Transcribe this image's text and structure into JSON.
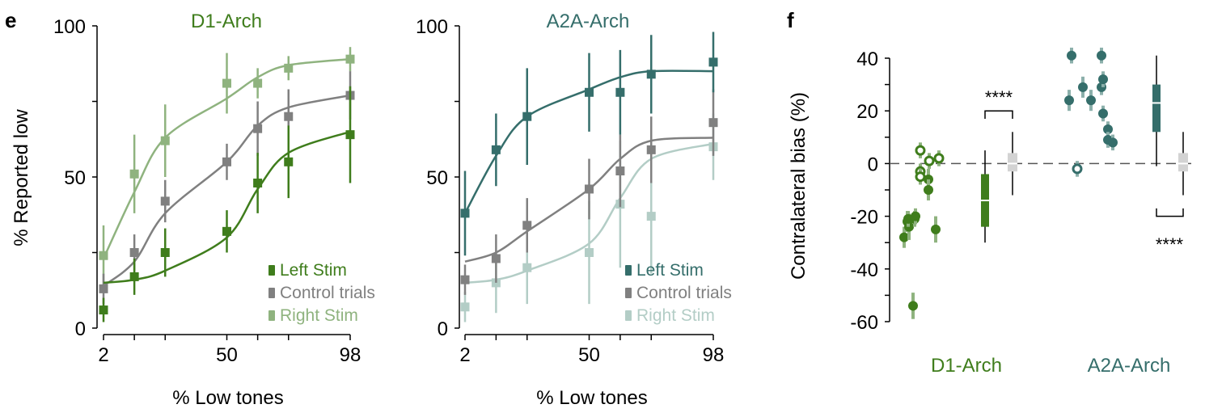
{
  "panel_labels": {
    "e": "e",
    "f": "f"
  },
  "colors": {
    "d1_left": "#3f7d1c",
    "d1_right": "#8fb37f",
    "control": "#808080",
    "a2a_left": "#356e6b",
    "a2a_right": "#b3cdc6",
    "bias_grey": "#d3d3d3",
    "d1_bias": "#3f7d1c",
    "d1_bias_ci": "#8fb37f",
    "a2a_bias": "#356e6b",
    "a2a_bias_ci": "#8cb0ab"
  },
  "chart_data": [
    {
      "type": "line",
      "title": "D1-Arch",
      "xlabel": "% Low tones",
      "ylabel": "% Reported low",
      "x": [
        2,
        14,
        26,
        50,
        62,
        74,
        98
      ],
      "xticks": [
        2,
        50,
        98
      ],
      "ylim": [
        0,
        100
      ],
      "yticks": [
        0,
        50,
        100
      ],
      "grid": false,
      "legend_position": "bottom-right",
      "series": [
        {
          "name": "Left Stim",
          "color": "#3f7d1c",
          "values": [
            6,
            17,
            25,
            32,
            48,
            55,
            64
          ],
          "err": [
            4,
            6,
            8,
            7,
            10,
            12,
            16
          ],
          "fit": [
            15,
            16,
            19,
            30,
            46,
            58,
            65
          ]
        },
        {
          "name": "Control trials",
          "color": "#808080",
          "values": [
            13,
            25,
            42,
            55,
            66,
            70,
            77
          ],
          "err": [
            5,
            6,
            7,
            6,
            9,
            9,
            8
          ],
          "fit": [
            14,
            22,
            38,
            55,
            67,
            73,
            77
          ]
        },
        {
          "name": "Right Stim",
          "color": "#8fb37f",
          "values": [
            24,
            51,
            62,
            81,
            81,
            86,
            89
          ],
          "err": [
            10,
            13,
            12,
            10,
            5,
            4,
            4
          ],
          "fit": [
            23,
            45,
            63,
            76,
            83,
            87,
            89
          ]
        }
      ]
    },
    {
      "type": "line",
      "title": "A2A-Arch",
      "xlabel": "% Low tones",
      "ylabel": "",
      "x": [
        2,
        14,
        26,
        50,
        62,
        74,
        98
      ],
      "xticks": [
        2,
        50,
        98
      ],
      "ylim": [
        0,
        100
      ],
      "yticks": [
        0,
        50,
        100
      ],
      "grid": false,
      "legend_position": "bottom-right",
      "series": [
        {
          "name": "Left Stim",
          "color": "#356e6b",
          "values": [
            38,
            59,
            70,
            78,
            78,
            84,
            88
          ],
          "err": [
            14,
            12,
            16,
            13,
            14,
            13,
            10
          ],
          "fit": [
            38,
            57,
            70,
            79,
            83,
            85,
            85
          ]
        },
        {
          "name": "Control trials",
          "color": "#808080",
          "values": [
            16,
            23,
            34,
            46,
            52,
            59,
            68
          ],
          "err": [
            5,
            8,
            9,
            10,
            12,
            11,
            11
          ],
          "fit": [
            22,
            25,
            32,
            46,
            56,
            62,
            63
          ]
        },
        {
          "name": "Right Stim",
          "color": "#b3cdc6",
          "values": [
            7,
            15,
            20,
            25,
            41,
            37,
            60
          ],
          "err": [
            5,
            10,
            12,
            17,
            21,
            19,
            11
          ],
          "fit": [
            15,
            16,
            19,
            28,
            43,
            56,
            61
          ]
        }
      ]
    },
    {
      "type": "scatter",
      "ylabel": "Contralateral bias (%)",
      "xlabel": "",
      "categories": [
        "D1-Arch",
        "A2A-Arch"
      ],
      "ylim": [
        -60,
        40
      ],
      "yticks": [
        -60,
        -40,
        -20,
        0,
        20,
        40
      ],
      "reference_line": 0,
      "grid": false,
      "significance": [
        "****",
        "****"
      ],
      "groups": [
        {
          "name": "D1-Arch",
          "points": [
            {
              "offset": 0,
              "value": -28,
              "filled": true,
              "err": 4
            },
            {
              "offset": 4,
              "value": -22,
              "filled": true,
              "err": 4
            },
            {
              "offset": 6,
              "value": -24,
              "filled": true,
              "err": 5
            },
            {
              "offset": 5,
              "value": -21,
              "filled": true,
              "err": 3
            },
            {
              "offset": 13,
              "value": -21,
              "filled": true,
              "err": 3
            },
            {
              "offset": 14,
              "value": -20,
              "filled": true,
              "err": 3
            },
            {
              "offset": 11,
              "value": -54,
              "filled": true,
              "err": 5
            },
            {
              "offset": 20,
              "value": 5,
              "filled": false,
              "err": 3
            },
            {
              "offset": 20,
              "value": -3,
              "filled": false,
              "err": 3
            },
            {
              "offset": 20,
              "value": -5,
              "filled": false,
              "err": 3
            },
            {
              "offset": 30,
              "value": -6,
              "filled": true,
              "err": 4
            },
            {
              "offset": 30,
              "value": -10,
              "filled": true,
              "err": 4
            },
            {
              "offset": 31,
              "value": 1,
              "filled": false,
              "err": 3
            },
            {
              "offset": 43,
              "value": 2,
              "filled": false,
              "err": 3
            },
            {
              "offset": 39,
              "value": -25,
              "filled": true,
              "err": 5
            }
          ],
          "summary_stim": {
            "median": -14,
            "q1": -24,
            "q3": -4,
            "min": -30,
            "max": 5
          },
          "summary_control": {
            "median": 0,
            "q1": -3,
            "q3": 4,
            "min": -12,
            "max": 12
          }
        },
        {
          "name": "A2A-Arch",
          "points": [
            {
              "offset": 0,
              "value": 24,
              "filled": true,
              "err": 4
            },
            {
              "offset": 3,
              "value": 41,
              "filled": true,
              "err": 3
            },
            {
              "offset": 10,
              "value": -2,
              "filled": false,
              "err": 3
            },
            {
              "offset": 17,
              "value": 29,
              "filled": true,
              "err": 4
            },
            {
              "offset": 27,
              "value": 24,
              "filled": true,
              "err": 4
            },
            {
              "offset": 40,
              "value": 41,
              "filled": true,
              "err": 3
            },
            {
              "offset": 40,
              "value": 29,
              "filled": true,
              "err": 3
            },
            {
              "offset": 42,
              "value": 32,
              "filled": true,
              "err": 3
            },
            {
              "offset": 42,
              "value": 19,
              "filled": true,
              "err": 3
            },
            {
              "offset": 48,
              "value": 13,
              "filled": true,
              "err": 3
            },
            {
              "offset": 48,
              "value": 9,
              "filled": true,
              "err": 3
            },
            {
              "offset": 54,
              "value": 8,
              "filled": true,
              "err": 3
            }
          ],
          "summary_stim": {
            "median": 23,
            "q1": 12,
            "q3": 30,
            "min": -1,
            "max": 41
          },
          "summary_control": {
            "median": 0,
            "q1": -3,
            "q3": 4,
            "min": -12,
            "max": 12
          }
        }
      ]
    }
  ]
}
